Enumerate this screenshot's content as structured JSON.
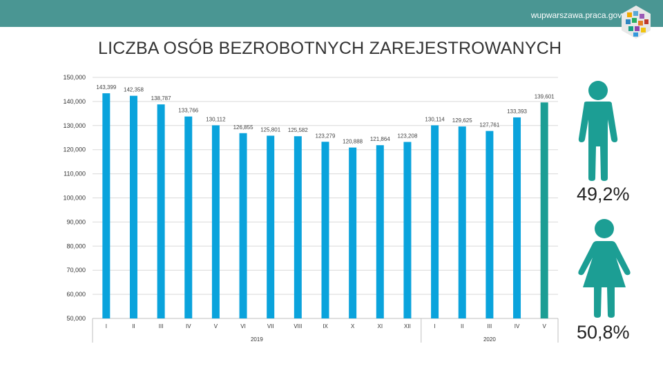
{
  "header": {
    "site_url": "wupwarszawa.praca.gov.pl"
  },
  "title": "LICZBA OSÓB BEZROBOTNYCH ZAREJESTROWANYCH",
  "gender": {
    "male_pct": "49,2%",
    "female_pct": "50,8%",
    "male_icon": "male-figure-icon",
    "female_icon": "female-figure-icon",
    "color": "#1c9e94"
  },
  "chart_data": {
    "type": "bar",
    "title": "",
    "xlabel": "",
    "ylabel": "",
    "ylim": [
      50000,
      150000
    ],
    "yticks": [
      "50,000",
      "60,000",
      "70,000",
      "80,000",
      "90,000",
      "100,000",
      "110,000",
      "120,000",
      "130,000",
      "140,000",
      "150,000"
    ],
    "ytick_values": [
      50000,
      60000,
      70000,
      80000,
      90000,
      100000,
      110000,
      120000,
      130000,
      140000,
      150000
    ],
    "grid": true,
    "categories": [
      "I",
      "II",
      "III",
      "IV",
      "V",
      "VI",
      "VII",
      "VIII",
      "IX",
      "X",
      "XI",
      "XII",
      "I",
      "II",
      "III",
      "IV",
      "V"
    ],
    "values": [
      143399,
      142358,
      138787,
      133766,
      130112,
      126855,
      125801,
      125582,
      123279,
      120888,
      121864,
      123208,
      130114,
      129625,
      127761,
      133393,
      139601
    ],
    "value_labels": [
      "143,399",
      "142,358",
      "138,787",
      "133,766",
      "130,112",
      "126,855",
      "125,801",
      "125,582",
      "123,279",
      "120,888",
      "121,864",
      "123,208",
      "130,114",
      "129,625",
      "127,761",
      "133,393",
      "139,601"
    ],
    "groups": [
      {
        "label": "2019",
        "count": 12
      },
      {
        "label": "2020",
        "count": 5
      }
    ],
    "colors": {
      "bar": "#0aa3dc",
      "highlight_bar": "#1c9e94",
      "highlight_index": 16,
      "grid": "#d9d9d9",
      "axis": "#bfbfbf"
    }
  }
}
